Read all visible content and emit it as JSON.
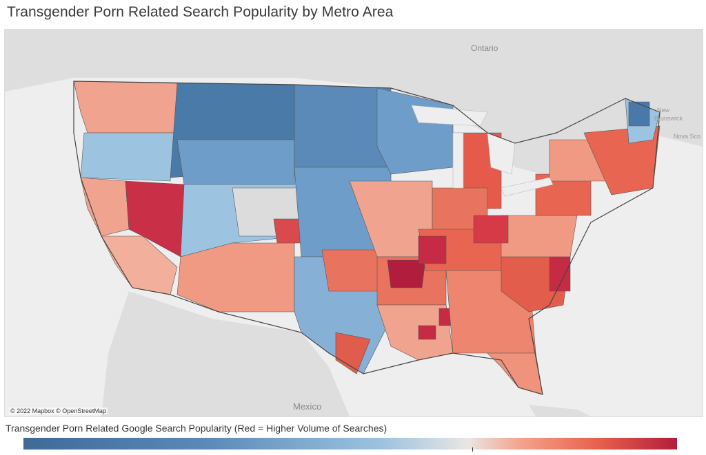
{
  "title": "Transgender Porn Related Search Popularity by Metro Area",
  "map": {
    "attribution": "© 2022 Mapbox © OpenStreetMap",
    "labels": {
      "ontario": "Ontario",
      "mexico": "Mexico",
      "new_brunswick_1": "New",
      "new_brunswick_2": "Brunswick",
      "nova_scotia": "Nova Sco"
    },
    "colors": {
      "land": "#dcdcdc",
      "water": "#eeeeee",
      "low": "#4a78a8",
      "mid": "#e3e2df",
      "high": "#b11d3c",
      "border": "#555555"
    }
  },
  "legend": {
    "title": "Transgender Porn Related Google Search Popularity (Red = Higher Volume of Searches)",
    "color_scale": [
      "#3e6a96",
      "#9dc3e0",
      "#e9e6e3",
      "#f4a38c",
      "#b11d3c"
    ]
  }
}
